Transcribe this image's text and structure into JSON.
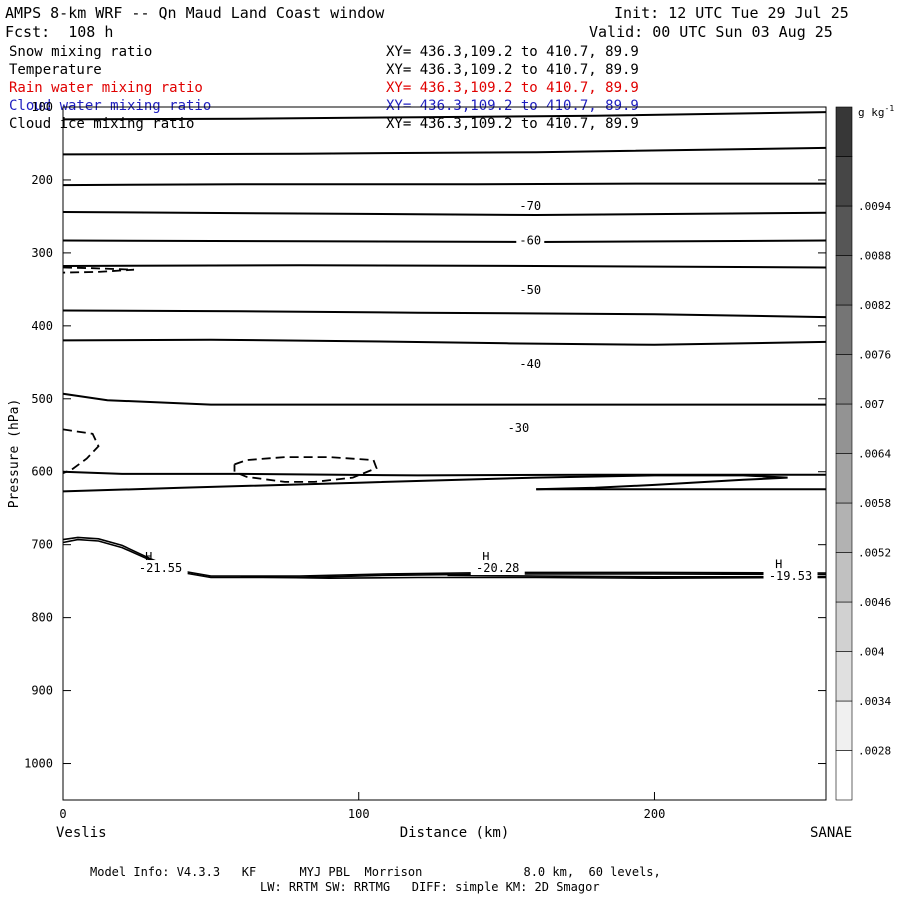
{
  "header": {
    "title": "AMPS 8-km WRF -- Qn Maud Land Coast window",
    "fcst": "Fcst:  108 h",
    "init": "Init: 12 UTC Tue 29 Jul 25",
    "valid": "Valid: 00 UTC Sun 03 Aug 25"
  },
  "fields": [
    {
      "label": "Snow mixing ratio",
      "xy": "XY= 436.3,109.2 to 410.7, 89.9",
      "color": "#000000"
    },
    {
      "label": "Temperature",
      "xy": "XY= 436.3,109.2 to 410.7, 89.9",
      "color": "#000000"
    },
    {
      "label": "Rain water mixing ratio",
      "xy": "XY= 436.3,109.2 to 410.7, 89.9",
      "color": "#e00000"
    },
    {
      "label": "Cloud water mixing ratio",
      "xy": "XY= 436.3,109.2 to 410.7, 89.9",
      "color": "#2020c0"
    },
    {
      "label": "Cloud ice mixing ratio",
      "xy": "XY= 436.3,109.2 to 410.7, 89.9",
      "color": "#000000"
    }
  ],
  "footer": {
    "line1": "Model Info: V4.3.3   KF      MYJ PBL  Morrison              8.0 km,  60 levels,",
    "line2": "LW: RRTM SW: RRTMG   DIFF: simple KM: 2D Smagor"
  },
  "chart_data": {
    "type": "cross-section",
    "ylabel": "Pressure (hPa)",
    "xlabel": "Distance (km)",
    "left_endpoint": "Veslis",
    "right_endpoint": "SANAE",
    "xlim": [
      0,
      258
    ],
    "ylim": [
      1050,
      100
    ],
    "x_ticks": [
      0,
      100,
      200
    ],
    "y_ticks": [
      100,
      200,
      300,
      400,
      500,
      600,
      700,
      800,
      900,
      1000
    ],
    "colorbar": {
      "unit": "g kg",
      "unit_exponent": "-1",
      "labels": [
        ".0028",
        ".0034",
        ".004",
        ".0046",
        ".0052",
        ".0058",
        ".0064",
        ".007",
        ".0076",
        ".0082",
        ".0088",
        ".0094"
      ]
    },
    "isotherm_labels": [
      {
        "text": "-70",
        "x": 158,
        "p": 236
      },
      {
        "text": "-60",
        "x": 158,
        "p": 283
      },
      {
        "text": "-50",
        "x": 158,
        "p": 351
      },
      {
        "text": "-40",
        "x": 158,
        "p": 452
      },
      {
        "text": "-30",
        "x": 154,
        "p": 540
      }
    ],
    "highs": [
      {
        "label": "H",
        "value": "-21.55",
        "x": 29,
        "p": 717,
        "vx": 33,
        "vp": 732
      },
      {
        "label": "H",
        "value": "-20.28",
        "x": 143,
        "p": 717,
        "vx": 147,
        "vp": 732
      },
      {
        "label": "H",
        "value": "-19.53",
        "x": 242,
        "p": 727,
        "vx": 246,
        "vp": 743
      }
    ],
    "isotherms": [
      [
        [
          0,
          117
        ],
        [
          60,
          116
        ],
        [
          120,
          114
        ],
        [
          180,
          112
        ],
        [
          258,
          107
        ]
      ],
      [
        [
          0,
          165
        ],
        [
          80,
          164
        ],
        [
          160,
          162
        ],
        [
          258,
          156
        ]
      ],
      [
        [
          0,
          207
        ],
        [
          60,
          206
        ],
        [
          140,
          206
        ],
        [
          200,
          205
        ],
        [
          258,
          205
        ]
      ],
      [
        [
          0,
          244
        ],
        [
          80,
          246
        ],
        [
          160,
          248
        ],
        [
          258,
          245
        ]
      ],
      [
        [
          0,
          283
        ],
        [
          80,
          284
        ],
        [
          160,
          285
        ],
        [
          258,
          283
        ]
      ],
      [
        [
          0,
          318
        ],
        [
          80,
          317
        ],
        [
          160,
          318
        ],
        [
          258,
          320
        ]
      ],
      [
        [
          0,
          379
        ],
        [
          60,
          380
        ],
        [
          120,
          382
        ],
        [
          200,
          384
        ],
        [
          258,
          388
        ]
      ],
      [
        [
          0,
          420
        ],
        [
          50,
          419
        ],
        [
          100,
          421
        ],
        [
          150,
          424
        ],
        [
          200,
          426
        ],
        [
          258,
          422
        ]
      ],
      [
        [
          0,
          600
        ],
        [
          20,
          603
        ],
        [
          60,
          603
        ],
        [
          120,
          605
        ],
        [
          180,
          604
        ],
        [
          258,
          604
        ]
      ],
      [
        [
          0,
          493
        ],
        [
          15,
          502
        ],
        [
          50,
          508
        ],
        [
          120,
          508
        ],
        [
          200,
          508
        ],
        [
          258,
          508
        ]
      ],
      [
        [
          0,
          627
        ],
        [
          40,
          622
        ],
        [
          100,
          615
        ],
        [
          160,
          608
        ],
        [
          200,
          605
        ],
        [
          230,
          605
        ],
        [
          245,
          608
        ],
        [
          230,
          611
        ],
        [
          200,
          618
        ],
        [
          180,
          622
        ],
        [
          160,
          624
        ]
      ],
      [
        [
          160,
          624
        ],
        [
          200,
          624
        ],
        [
          258,
          624
        ]
      ]
    ],
    "surface_lines": [
      [
        [
          0,
          697
        ],
        [
          5,
          693
        ],
        [
          12,
          695
        ],
        [
          20,
          704
        ],
        [
          30,
          722
        ],
        [
          40,
          738
        ],
        [
          50,
          745
        ],
        [
          80,
          745
        ],
        [
          110,
          742
        ],
        [
          150,
          740
        ],
        [
          200,
          740
        ],
        [
          258,
          741
        ]
      ],
      [
        [
          0,
          693
        ],
        [
          5,
          690
        ],
        [
          12,
          692
        ],
        [
          20,
          701
        ],
        [
          30,
          720
        ],
        [
          40,
          736
        ],
        [
          50,
          743
        ],
        [
          80,
          743
        ],
        [
          110,
          740
        ],
        [
          150,
          738
        ],
        [
          200,
          738
        ],
        [
          258,
          739
        ]
      ],
      [
        [
          60,
          744
        ],
        [
          90,
          746
        ],
        [
          120,
          745
        ],
        [
          160,
          745
        ],
        [
          200,
          746
        ],
        [
          258,
          745
        ]
      ],
      [
        [
          130,
          742
        ],
        [
          160,
          743
        ],
        [
          200,
          744
        ],
        [
          258,
          744
        ]
      ]
    ],
    "snow_contours": [
      [
        [
          0,
          320
        ],
        [
          10,
          321
        ],
        [
          24,
          323
        ],
        [
          12,
          326
        ],
        [
          0,
          327
        ]
      ],
      [
        [
          0,
          542
        ],
        [
          10,
          548
        ],
        [
          12,
          565
        ],
        [
          8,
          582
        ],
        [
          3,
          597
        ],
        [
          0,
          602
        ]
      ],
      [
        [
          58,
          590
        ],
        [
          62,
          584
        ],
        [
          75,
          580
        ],
        [
          90,
          580
        ],
        [
          105,
          584
        ],
        [
          106,
          595
        ],
        [
          98,
          608
        ],
        [
          85,
          614
        ],
        [
          75,
          614
        ],
        [
          62,
          607
        ],
        [
          58,
          600
        ],
        [
          58,
          590
        ]
      ]
    ]
  }
}
